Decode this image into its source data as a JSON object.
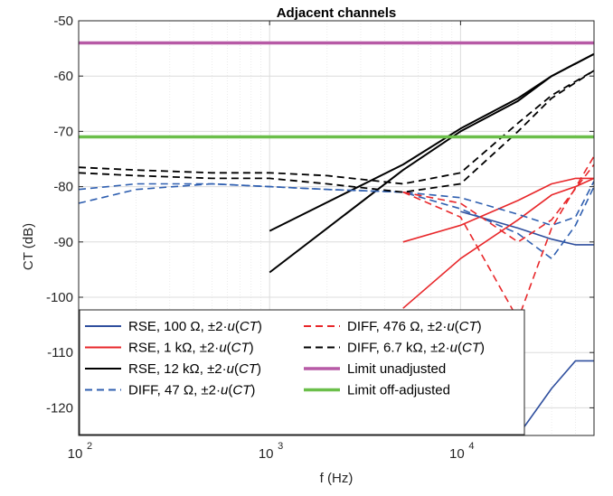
{
  "chart_data": {
    "type": "line",
    "title": "Adjacent channels",
    "xlabel": "f (Hz)",
    "ylabel": "CT (dB)",
    "xscale": "log",
    "xlim": [
      100,
      50000
    ],
    "ylim": [
      -125,
      -50
    ],
    "grid": true,
    "legend_location": "bottom-left",
    "x_ticks": [
      {
        "value": 100,
        "base": "10",
        "exp": "2"
      },
      {
        "value": 1000,
        "base": "10",
        "exp": "3"
      },
      {
        "value": 10000,
        "base": "10",
        "exp": "4"
      }
    ],
    "y_ticks": [
      -50,
      -60,
      -70,
      -80,
      -90,
      -100,
      -110,
      -120
    ],
    "legend_items": [
      {
        "id": "rse100",
        "parts": [
          "RSE, 100 Ω, ±2·",
          "u",
          "(",
          "CT",
          ")"
        ],
        "color": "#2f4f9e",
        "dash": "solid"
      },
      {
        "id": "rse1k",
        "parts": [
          "RSE, 1 kΩ, ±2·",
          "u",
          "(",
          "CT",
          ")"
        ],
        "color": "#e8272a",
        "dash": "solid"
      },
      {
        "id": "rse12k",
        "parts": [
          "RSE, 12 kΩ, ±2·",
          "u",
          "(",
          "CT",
          ")"
        ],
        "color": "#000000",
        "dash": "solid"
      },
      {
        "id": "diff47",
        "parts": [
          "DIFF, 47 Ω, ±2·",
          "u",
          "(",
          "CT",
          ")"
        ],
        "color": "#2f5fb0",
        "dash": "dashed"
      },
      {
        "id": "diff476",
        "parts": [
          "DIFF, 476 Ω, ±2·",
          "u",
          "(",
          "CT",
          ")"
        ],
        "color": "#e8272a",
        "dash": "dashed"
      },
      {
        "id": "diff67k",
        "parts": [
          "DIFF, 6.7 kΩ, ±2·",
          "u",
          "(",
          "CT",
          ")"
        ],
        "color": "#000000",
        "dash": "dashed"
      },
      {
        "id": "limit_unadj",
        "parts": [
          "Limit unadjusted",
          "",
          "",
          "",
          ""
        ],
        "color": "#b75aa6",
        "dash": "solid"
      },
      {
        "id": "limit_off",
        "parts": [
          "Limit off-adjusted",
          "",
          "",
          "",
          ""
        ],
        "color": "#6bbf4a",
        "dash": "solid"
      }
    ],
    "series": [
      {
        "id": "rse100",
        "color": "#2f4f9e",
        "dash": "solid",
        "width": 1.6,
        "lines": [
          {
            "x": [
              10000,
              20000,
              30000,
              40000,
              50000
            ],
            "y": [
              -84.5,
              -87.5,
              -89.5,
              -90.5,
              -90.5
            ]
          },
          {
            "x": [
              20000,
              30000,
              40000,
              50000
            ],
            "y": [
              -125,
              -116.5,
              -111.5,
              -111.5
            ]
          }
        ]
      },
      {
        "id": "rse1k",
        "color": "#e8272a",
        "dash": "solid",
        "width": 1.6,
        "lines": [
          {
            "x": [
              5000,
              10000,
              20000,
              30000,
              40000,
              50000
            ],
            "y": [
              -90,
              -87,
              -82.5,
              -79.5,
              -78.5,
              -78.5
            ]
          },
          {
            "x": [
              5000,
              10000,
              20000,
              30000,
              40000,
              50000
            ],
            "y": [
              -102,
              -93,
              -86,
              -81.5,
              -80,
              -78.5
            ]
          }
        ]
      },
      {
        "id": "rse12k",
        "color": "#000000",
        "dash": "solid",
        "width": 2.0,
        "lines": [
          {
            "x": [
              1000,
              5000,
              10000,
              20000,
              30000,
              50000
            ],
            "y": [
              -88,
              -76,
              -69.5,
              -64,
              -60,
              -56
            ]
          },
          {
            "x": [
              1000,
              5000,
              10000,
              20000,
              30000,
              50000
            ],
            "y": [
              -95.5,
              -77,
              -70,
              -64.5,
              -60,
              -56
            ]
          }
        ]
      },
      {
        "id": "diff47",
        "color": "#2f5fb0",
        "dash": "dashed",
        "width": 1.6,
        "lines": [
          {
            "x": [
              100,
              200,
              500,
              1000,
              2000,
              5000,
              10000,
              20000,
              30000,
              40000,
              50000
            ],
            "y": [
              -83,
              -80.5,
              -79.5,
              -80,
              -80.5,
              -81,
              -82,
              -85,
              -87,
              -85.5,
              -79
            ]
          },
          {
            "x": [
              100,
              200,
              500,
              1000,
              2000,
              5000,
              10000,
              20000,
              30000,
              40000,
              50000
            ],
            "y": [
              -80.5,
              -79.5,
              -79.5,
              -80,
              -80.5,
              -81,
              -84,
              -88.5,
              -93,
              -87,
              -80
            ]
          }
        ]
      },
      {
        "id": "diff476",
        "color": "#e8272a",
        "dash": "dashed",
        "width": 1.6,
        "lines": [
          {
            "x": [
              5000,
              10000,
              20000,
              30000,
              50000
            ],
            "y": [
              -81,
              -85.5,
              -104,
              -87.5,
              -74.5
            ]
          },
          {
            "x": [
              5000,
              10000,
              20000,
              30000,
              50000
            ],
            "y": [
              -81,
              -83,
              -90,
              -86,
              -76
            ]
          }
        ]
      },
      {
        "id": "diff67k",
        "color": "#000000",
        "dash": "dashed",
        "width": 1.8,
        "lines": [
          {
            "x": [
              100,
              200,
              500,
              1000,
              2000,
              5000,
              10000,
              20000,
              30000,
              50000
            ],
            "y": [
              -76.5,
              -77,
              -77.5,
              -77.5,
              -78,
              -79.5,
              -77.5,
              -68.5,
              -63.5,
              -59
            ]
          },
          {
            "x": [
              100,
              200,
              500,
              1000,
              2000,
              5000,
              10000,
              20000,
              30000,
              50000
            ],
            "y": [
              -77.5,
              -78,
              -78.5,
              -78.5,
              -79.5,
              -81,
              -79.5,
              -70,
              -64,
              -59
            ]
          }
        ]
      },
      {
        "id": "limit_unadj",
        "color": "#b75aa6",
        "dash": "solid",
        "width": 3.5,
        "lines": [
          {
            "x": [
              100,
              50000
            ],
            "y": [
              -54,
              -54
            ]
          }
        ]
      },
      {
        "id": "limit_off",
        "color": "#6bbf4a",
        "dash": "solid",
        "width": 3.5,
        "lines": [
          {
            "x": [
              100,
              50000
            ],
            "y": [
              -71,
              -71
            ]
          }
        ]
      }
    ]
  }
}
